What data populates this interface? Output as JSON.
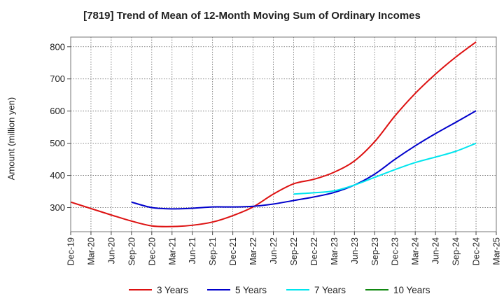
{
  "chart_data": {
    "type": "line",
    "title": "[7819]  Trend of Mean of 12-Month Moving Sum of Ordinary Incomes",
    "xlabel": "",
    "ylabel": "Amount (million yen)",
    "ylim": [
      225,
      830
    ],
    "yticks": [
      300,
      400,
      500,
      600,
      700,
      800
    ],
    "grid": true,
    "legend_position": "bottom",
    "categories": [
      "Dec-19",
      "Mar-20",
      "Jun-20",
      "Sep-20",
      "Dec-20",
      "Mar-21",
      "Jun-21",
      "Sep-21",
      "Dec-21",
      "Mar-22",
      "Jun-22",
      "Sep-22",
      "Dec-22",
      "Mar-23",
      "Jun-23",
      "Sep-23",
      "Dec-23",
      "Mar-24",
      "Jun-24",
      "Sep-24",
      "Dec-24",
      "Mar-25"
    ],
    "series": [
      {
        "name": "3 Years",
        "color": "#dd1111",
        "values": [
          317,
          297,
          277,
          258,
          243,
          241,
          245,
          255,
          275,
          302,
          342,
          374,
          388,
          410,
          445,
          505,
          585,
          655,
          715,
          768,
          815,
          null
        ]
      },
      {
        "name": "5 Years",
        "color": "#0000cc",
        "values": [
          null,
          null,
          null,
          317,
          300,
          296,
          298,
          302,
          302,
          304,
          311,
          322,
          333,
          347,
          370,
          404,
          450,
          492,
          530,
          565,
          601,
          null
        ]
      },
      {
        "name": "7 Years",
        "color": "#00e5ee",
        "values": [
          null,
          null,
          null,
          null,
          null,
          null,
          null,
          null,
          null,
          null,
          null,
          342,
          346,
          352,
          370,
          394,
          418,
          440,
          457,
          475,
          500,
          null
        ]
      },
      {
        "name": "10 Years",
        "color": "#118811",
        "values": [
          null,
          null,
          null,
          null,
          null,
          null,
          null,
          null,
          null,
          null,
          null,
          null,
          null,
          null,
          null,
          null,
          null,
          null,
          null,
          null,
          null,
          null
        ]
      }
    ]
  }
}
